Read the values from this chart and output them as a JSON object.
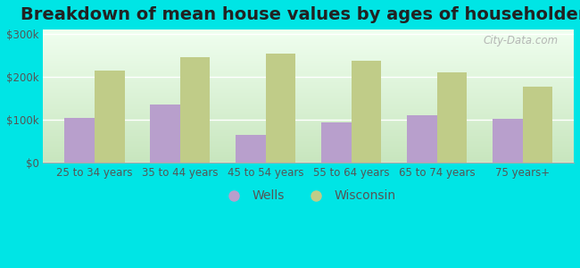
{
  "title": "Breakdown of mean house values by ages of householders",
  "categories": [
    "25 to 34 years",
    "35 to 44 years",
    "45 to 54 years",
    "55 to 64 years",
    "65 to 74 years",
    "75 years+"
  ],
  "wells_values": [
    105000,
    135000,
    65000,
    95000,
    110000,
    102000
  ],
  "wisconsin_values": [
    215000,
    245000,
    255000,
    237000,
    210000,
    178000
  ],
  "wells_color": "#b89fcc",
  "wisconsin_color": "#c0cc88",
  "ylim": [
    0,
    310000
  ],
  "yticks": [
    0,
    100000,
    200000,
    300000
  ],
  "ytick_labels": [
    "$0",
    "$100k",
    "$200k",
    "$300k"
  ],
  "legend_wells": "Wells",
  "legend_wisconsin": "Wisconsin",
  "background_color": "#00e5e5",
  "plot_bg_top": "#f0fff0",
  "plot_bg_bottom": "#d8f0d0",
  "title_fontsize": 14,
  "tick_fontsize": 8.5,
  "legend_fontsize": 10,
  "bar_width": 0.35,
  "figsize": [
    6.5,
    3.0
  ],
  "dpi": 100
}
